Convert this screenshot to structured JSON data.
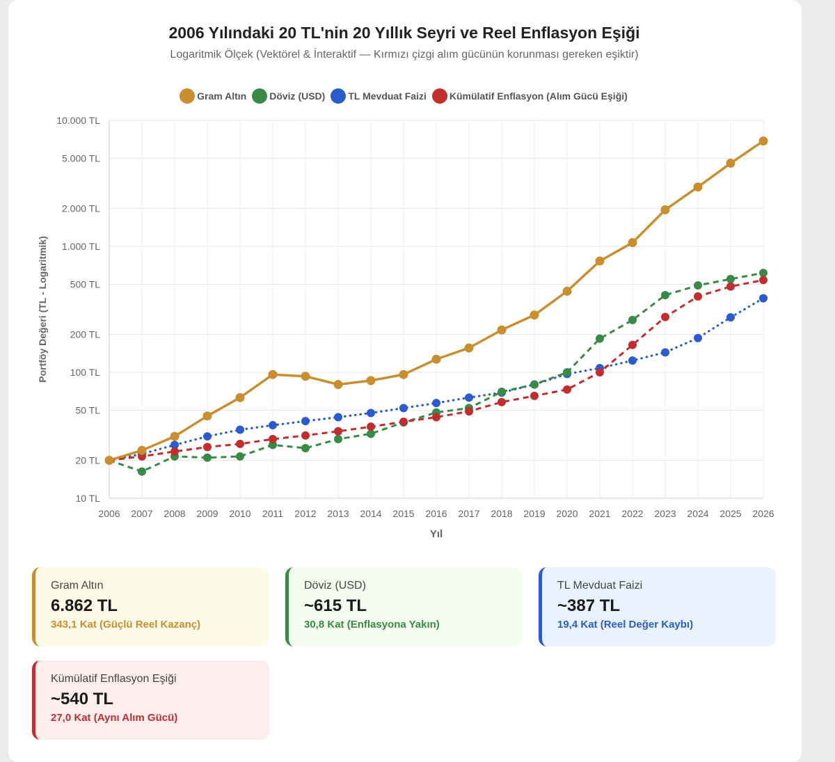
{
  "chart_data": {
    "type": "line",
    "title": "2006 Yılındaki 20 TL'nin 20 Yıllık Seyri ve Reel Enflasyon Eşiği",
    "subtitle": "Logaritmik Ölçek (Vektörel & İnteraktif — Kırmızı çizgi alım gücünün korunması gereken eşiktir)",
    "xlabel": "Yıl",
    "ylabel": "Portföy Değeri (TL - Logaritmik)",
    "yscale": "log",
    "ylim": [
      10,
      10000
    ],
    "grid": true,
    "legend": "top",
    "x": [
      "2006",
      "2007",
      "2008",
      "2009",
      "2010",
      "2011",
      "2012",
      "2013",
      "2014",
      "2015",
      "2016",
      "2017",
      "2018",
      "2019",
      "2020",
      "2021",
      "2022",
      "2023",
      "2024",
      "2025",
      "2026"
    ],
    "yticks": [
      {
        "value": 10,
        "label": "10 TL"
      },
      {
        "value": 20,
        "label": "20 TL"
      },
      {
        "value": 50,
        "label": "50 TL"
      },
      {
        "value": 100,
        "label": "100 TL"
      },
      {
        "value": 200,
        "label": "200 TL"
      },
      {
        "value": 500,
        "label": "500 TL"
      },
      {
        "value": 1000,
        "label": "1.000 TL"
      },
      {
        "value": 2000,
        "label": "2.000 TL"
      },
      {
        "value": 5000,
        "label": "5.000 TL"
      },
      {
        "value": 10000,
        "label": "10.000 TL"
      }
    ],
    "series": [
      {
        "name": "Gram Altın",
        "color": "#c98f2f",
        "style": "solid",
        "values": [
          20,
          24,
          31,
          45,
          63,
          96,
          93,
          80,
          86,
          96,
          127,
          156,
          217,
          285,
          440,
          765,
          1070,
          1950,
          2960,
          4570,
          6862
        ]
      },
      {
        "name": "Döviz (USD)",
        "color": "#3a8a47",
        "style": "dashed",
        "values": [
          20,
          16.3,
          21.5,
          21,
          21.5,
          26.5,
          25,
          29.5,
          32.5,
          40,
          48,
          52,
          70,
          80,
          100,
          185,
          260,
          410,
          490,
          550,
          615
        ]
      },
      {
        "name": "TL Mevduat Faizi",
        "color": "#2a5bcf",
        "style": "dotted",
        "values": [
          20,
          22.5,
          26.5,
          31,
          35,
          38,
          41,
          44,
          47.5,
          52,
          57,
          63,
          69,
          80,
          97,
          108,
          124,
          144,
          187,
          273,
          387
        ]
      },
      {
        "name": "Kümülatif Enflasyon (Alım Gücü Eşiği)",
        "color": "#c22e2e",
        "style": "dashed",
        "values": [
          20,
          21.5,
          23.5,
          25.5,
          27,
          29.5,
          31.5,
          34,
          37,
          40.5,
          44,
          49,
          58,
          65,
          73,
          100,
          165,
          275,
          400,
          480,
          540
        ]
      }
    ]
  },
  "cards": [
    {
      "label": "Gram Altın",
      "value": "6.862 TL",
      "sub": "343,1 Kat (Güçlü Reel Kazanç)",
      "border": "#c98f2f",
      "bg": "#fefae8",
      "subColor": "#c98f2f"
    },
    {
      "label": "Döviz (USD)",
      "value": "~615 TL",
      "sub": "30,8 Kat (Enflasyona Yakın)",
      "border": "#3a8a47",
      "bg": "#f4fdf0",
      "subColor": "#3a8a47"
    },
    {
      "label": "TL Mevduat Faizi",
      "value": "~387 TL",
      "sub": "19,4 Kat (Reel Değer Kaybı)",
      "border": "#2a5bcf",
      "bg": "#e9f3fd",
      "subColor": "#2a5bcf"
    },
    {
      "label": "Kümülatif Enflasyon Eşiği",
      "value": "~540 TL",
      "sub": "27,0 Kat (Aynı Alım Gücü)",
      "border": "#c22e2e",
      "bg": "#fdeeee",
      "subColor": "#c22e2e"
    }
  ]
}
